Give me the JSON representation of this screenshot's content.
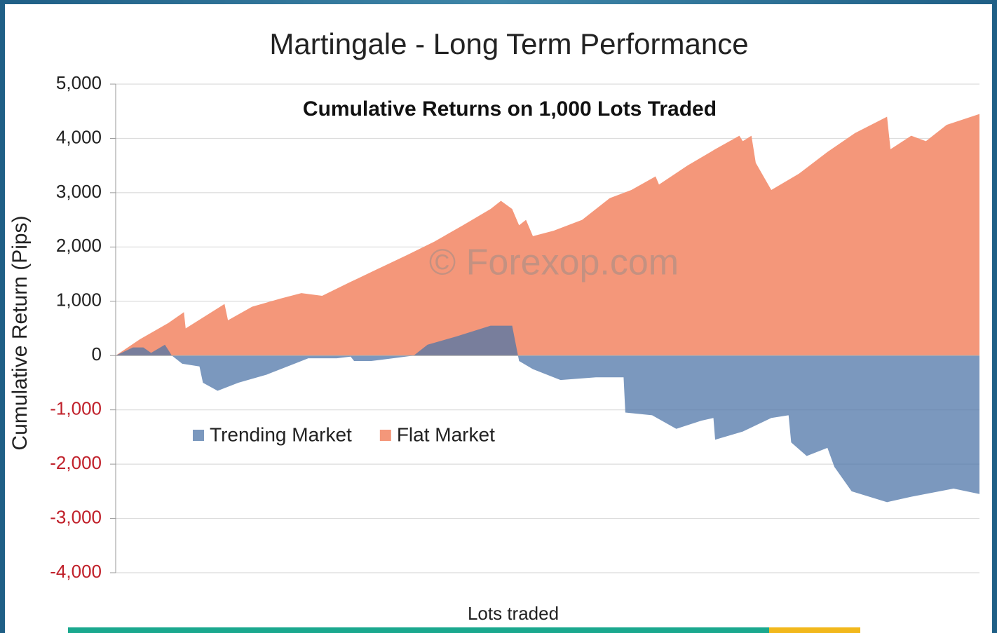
{
  "chart_data": {
    "type": "area",
    "title": "Martingale - Long Term Performance",
    "subtitle": "Cumulative Returns on 1,000 Lots Traded",
    "annotation": "© Forexop.com",
    "x_label": "Lots traded",
    "y_label": "Cumulative Return (Pips)",
    "xlim": [
      0,
      1000
    ],
    "ylim": [
      -4000,
      5000
    ],
    "yticks": [
      {
        "value": 5000,
        "label": "5,000"
      },
      {
        "value": 4000,
        "label": "4,000"
      },
      {
        "value": 3000,
        "label": "3,000"
      },
      {
        "value": 2000,
        "label": "2,000"
      },
      {
        "value": 1000,
        "label": "1,000"
      },
      0,
      {
        "value": -1000,
        "label": "-1,000"
      },
      {
        "value": -2000,
        "label": "-2,000"
      },
      {
        "value": -3000,
        "label": "-3,000"
      },
      {
        "value": -4000,
        "label": "-4,000"
      }
    ],
    "negative_tick_color": "#c0202a",
    "grid": true,
    "legend": "bottom-left",
    "series": [
      {
        "name": "Trending Market",
        "color": "#4f75a8",
        "x": [
          0,
          20,
          32,
          41,
          57,
          65,
          77,
          97,
          101,
          118,
          142,
          175,
          207,
          223,
          256,
          272,
          276,
          296,
          321,
          345,
          361,
          394,
          434,
          459,
          467,
          483,
          515,
          556,
          588,
          590,
          621,
          649,
          678,
          692,
          694,
          726,
          759,
          779,
          782,
          800,
          824,
          832,
          852,
          893,
          921,
          970,
          1000
        ],
        "values": [
          0,
          150,
          150,
          50,
          200,
          0,
          -150,
          -200,
          -500,
          -650,
          -500,
          -350,
          -150,
          -50,
          -50,
          -20,
          -100,
          -100,
          -50,
          0,
          200,
          350,
          550,
          550,
          -100,
          -250,
          -450,
          -400,
          -400,
          -1050,
          -1100,
          -1350,
          -1200,
          -1150,
          -1550,
          -1400,
          -1150,
          -1100,
          -1600,
          -1850,
          -1700,
          -2050,
          -2500,
          -2700,
          -2600,
          -2450,
          -2550
        ]
      },
      {
        "name": "Flat Market",
        "color": "#f4977a",
        "x": [
          0,
          28,
          61,
          79,
          81,
          101,
          126,
          130,
          158,
          191,
          215,
          239,
          271,
          304,
          337,
          369,
          402,
          434,
          446,
          459,
          467,
          475,
          483,
          507,
          540,
          572,
          597,
          625,
          629,
          662,
          694,
          722,
          726,
          736,
          741,
          759,
          791,
          824,
          856,
          893,
          897,
          921,
          938,
          962,
          1000
        ],
        "values": [
          0,
          300,
          600,
          800,
          500,
          700,
          950,
          650,
          900,
          1050,
          1150,
          1100,
          1350,
          1600,
          1850,
          2100,
          2400,
          2700,
          2850,
          2700,
          2400,
          2500,
          2200,
          2300,
          2500,
          2900,
          3050,
          3300,
          3150,
          3500,
          3800,
          4050,
          3950,
          4050,
          3550,
          3050,
          3350,
          3750,
          4100,
          4400,
          3800,
          4050,
          3950,
          4250,
          4450
        ]
      }
    ]
  }
}
